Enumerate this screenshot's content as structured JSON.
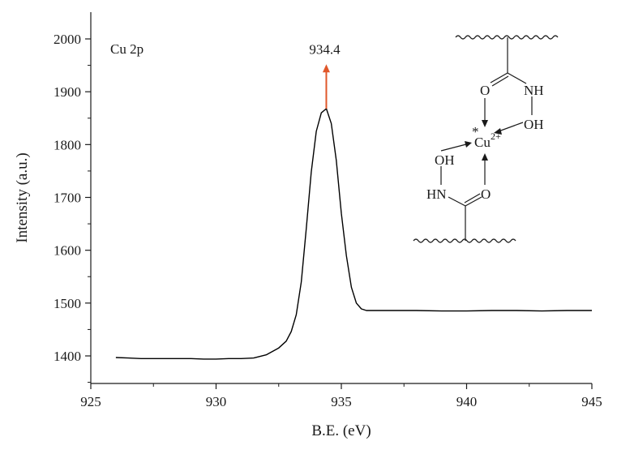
{
  "chart_data": {
    "type": "line",
    "panel_label": "Cu 2p",
    "xlabel": "B.E. (eV)",
    "ylabel": "Intensity (a.u.)",
    "xlim": [
      925,
      945
    ],
    "ylim": [
      1350,
      2050
    ],
    "xticks": [
      925,
      930,
      935,
      940,
      945
    ],
    "yticks": [
      1400,
      1500,
      1600,
      1700,
      1800,
      1900,
      2000
    ],
    "grid": false,
    "series": [
      {
        "color": "#000000",
        "x": [
          926.0,
          926.5,
          927.0,
          928.0,
          929.0,
          929.5,
          930.0,
          930.5,
          931.0,
          931.5,
          932.0,
          932.5,
          932.8,
          933.0,
          933.2,
          933.4,
          933.6,
          933.8,
          934.0,
          934.2,
          934.4,
          934.6,
          934.8,
          935.0,
          935.2,
          935.4,
          935.6,
          935.8,
          936.0,
          936.5,
          937.0,
          938.0,
          939.0,
          940.0,
          941.0,
          942.0,
          943.0,
          944.0,
          945.0
        ],
        "y": [
          1397,
          1396,
          1395,
          1395,
          1395,
          1394,
          1394,
          1395,
          1395,
          1396,
          1402,
          1415,
          1428,
          1446,
          1478,
          1540,
          1640,
          1748,
          1825,
          1860,
          1868,
          1840,
          1770,
          1670,
          1590,
          1530,
          1500,
          1489,
          1486,
          1486,
          1486,
          1486,
          1485,
          1485,
          1486,
          1486,
          1485,
          1486,
          1486
        ]
      }
    ],
    "annotations": [
      {
        "text": "934.4",
        "x": 934.4,
        "arrow_from_y": 1868,
        "arrow_to_y": 1952,
        "arrow_color": "#e0572a"
      }
    ],
    "inset_structure": {
      "labels": {
        "o_top": "O",
        "nh_top": "NH",
        "oh_right": "OH",
        "star": "*",
        "cu": "Cu",
        "cu_charge": "2+",
        "oh_left": "OH",
        "hn_bottom": "HN",
        "o_bottom": "O"
      }
    }
  }
}
